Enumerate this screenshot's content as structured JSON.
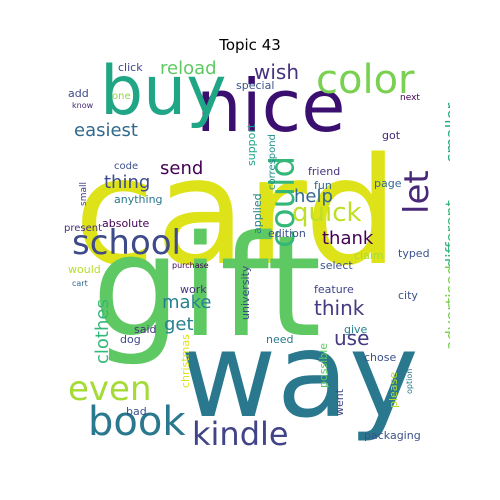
{
  "title": "Topic 43",
  "words": [
    {
      "text": "card",
      "color": "#dde318"
    },
    {
      "text": "gift",
      "color": "#5ec962"
    },
    {
      "text": "way",
      "color": "#2a788e"
    },
    {
      "text": "nice",
      "color": "#3b0f70"
    },
    {
      "text": "buy",
      "color": "#21a685"
    },
    {
      "text": "color",
      "color": "#7ad151"
    },
    {
      "text": "school",
      "color": "#3e4a89"
    },
    {
      "text": "could",
      "color": "#35b779"
    },
    {
      "text": "book",
      "color": "#2a788e"
    },
    {
      "text": "kindle",
      "color": "#414487"
    },
    {
      "text": "even",
      "color": "#a5db36"
    },
    {
      "text": "let",
      "color": "#482878"
    },
    {
      "text": "quick",
      "color": "#bddf26"
    },
    {
      "text": "wish",
      "color": "#46327e"
    },
    {
      "text": "reload",
      "color": "#5ec962"
    },
    {
      "text": "easiest",
      "color": "#31688e"
    },
    {
      "text": "send",
      "color": "#440154"
    },
    {
      "text": "thing",
      "color": "#3e4a89"
    },
    {
      "text": "help",
      "color": "#31688e"
    },
    {
      "text": "thank",
      "color": "#440154"
    },
    {
      "text": "smaller",
      "color": "#22a884"
    },
    {
      "text": "different",
      "color": "#35b779"
    },
    {
      "text": "advertised",
      "color": "#7ad151"
    },
    {
      "text": "make",
      "color": "#26828e"
    },
    {
      "text": "get",
      "color": "#26828e"
    },
    {
      "text": "think",
      "color": "#443983"
    },
    {
      "text": "use",
      "color": "#443983"
    },
    {
      "text": "clothes",
      "color": "#35b779"
    },
    {
      "text": "click",
      "color": "#414487"
    },
    {
      "text": "add",
      "color": "#3e4a89"
    },
    {
      "text": "one",
      "color": "#90d743"
    },
    {
      "text": "know",
      "color": "#482878"
    },
    {
      "text": "special",
      "color": "#3b528b"
    },
    {
      "text": "support",
      "color": "#20a486"
    },
    {
      "text": "correspond",
      "color": "#21918c"
    },
    {
      "text": "got",
      "color": "#482878"
    },
    {
      "text": "next",
      "color": "#440154"
    },
    {
      "text": "code",
      "color": "#3b528b"
    },
    {
      "text": "friend",
      "color": "#46327e"
    },
    {
      "text": "fun",
      "color": "#31688e"
    },
    {
      "text": "page",
      "color": "#31688e"
    },
    {
      "text": "small",
      "color": "#443983"
    },
    {
      "text": "anything",
      "color": "#2a788e"
    },
    {
      "text": "applied",
      "color": "#25838e"
    },
    {
      "text": "absolute",
      "color": "#440154"
    },
    {
      "text": "edition",
      "color": "#3b528b"
    },
    {
      "text": "present",
      "color": "#46327e"
    },
    {
      "text": "claim",
      "color": "#a5db36"
    },
    {
      "text": "typed",
      "color": "#3b528b"
    },
    {
      "text": "select",
      "color": "#3b528b"
    },
    {
      "text": "would",
      "color": "#b5de2b"
    },
    {
      "text": "purchase",
      "color": "#440154"
    },
    {
      "text": "university",
      "color": "#3e4a89"
    },
    {
      "text": "work",
      "color": "#46327e"
    },
    {
      "text": "feature",
      "color": "#414487"
    },
    {
      "text": "city",
      "color": "#3b528b"
    },
    {
      "text": "cart",
      "color": "#31688e"
    },
    {
      "text": "give",
      "color": "#26828e"
    },
    {
      "text": "said",
      "color": "#46327e"
    },
    {
      "text": "need",
      "color": "#2a788e"
    },
    {
      "text": "chose",
      "color": "#3b528b"
    },
    {
      "text": "possible",
      "color": "#5ec962"
    },
    {
      "text": "dog",
      "color": "#3e4a89"
    },
    {
      "text": "christmas",
      "color": "#dde318"
    },
    {
      "text": "please",
      "color": "#b5de2b"
    },
    {
      "text": "option",
      "color": "#2a788e"
    },
    {
      "text": "went",
      "color": "#3e4a89"
    },
    {
      "text": "bad",
      "color": "#3b528b"
    },
    {
      "text": "packaging",
      "color": "#3b528b"
    }
  ]
}
